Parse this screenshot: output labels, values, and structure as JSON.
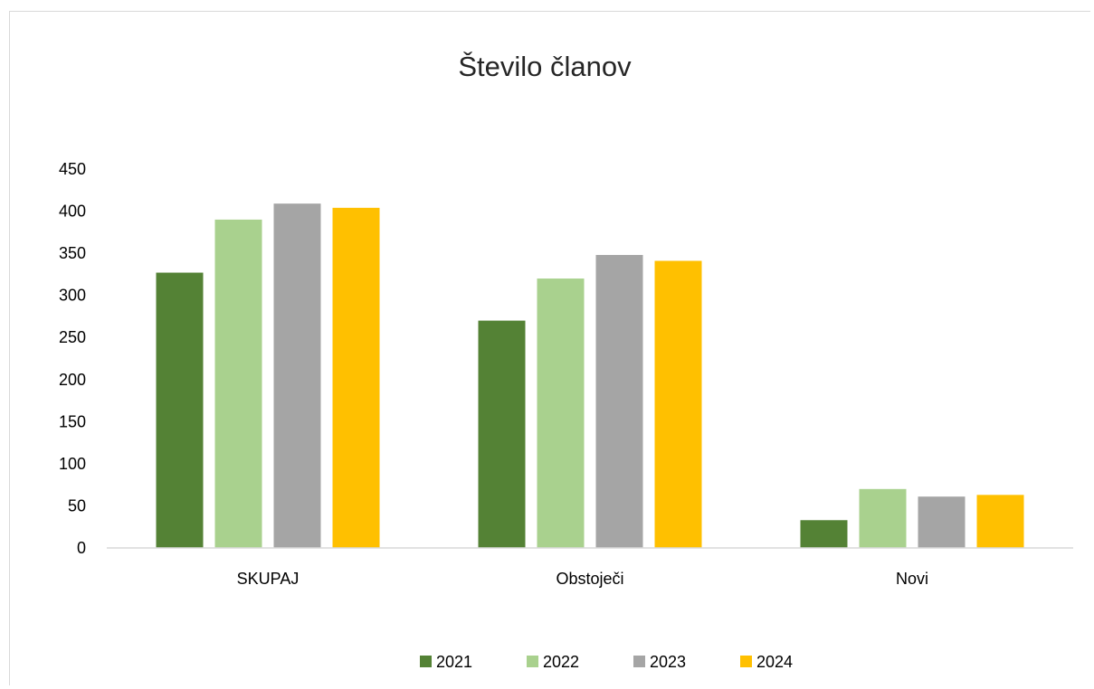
{
  "chart_data": {
    "type": "bar",
    "title": "Število članov",
    "xlabel": "",
    "ylabel": "",
    "categories": [
      "SKUPAJ",
      "Obstoječi",
      "Novi"
    ],
    "series": [
      {
        "name": "2021",
        "color": "#548235",
        "values": [
          327,
          270,
          33
        ]
      },
      {
        "name": "2022",
        "color": "#a9d18e",
        "values": [
          390,
          320,
          70
        ]
      },
      {
        "name": "2023",
        "color": "#a5a5a5",
        "values": [
          409,
          348,
          61
        ]
      },
      {
        "name": "2024",
        "color": "#ffc000",
        "values": [
          404,
          341,
          63
        ]
      }
    ],
    "ylim": [
      0,
      450
    ],
    "yticks": [
      0,
      50,
      100,
      150,
      200,
      250,
      300,
      350,
      400,
      450
    ],
    "grid": false,
    "legend_position": "bottom"
  }
}
